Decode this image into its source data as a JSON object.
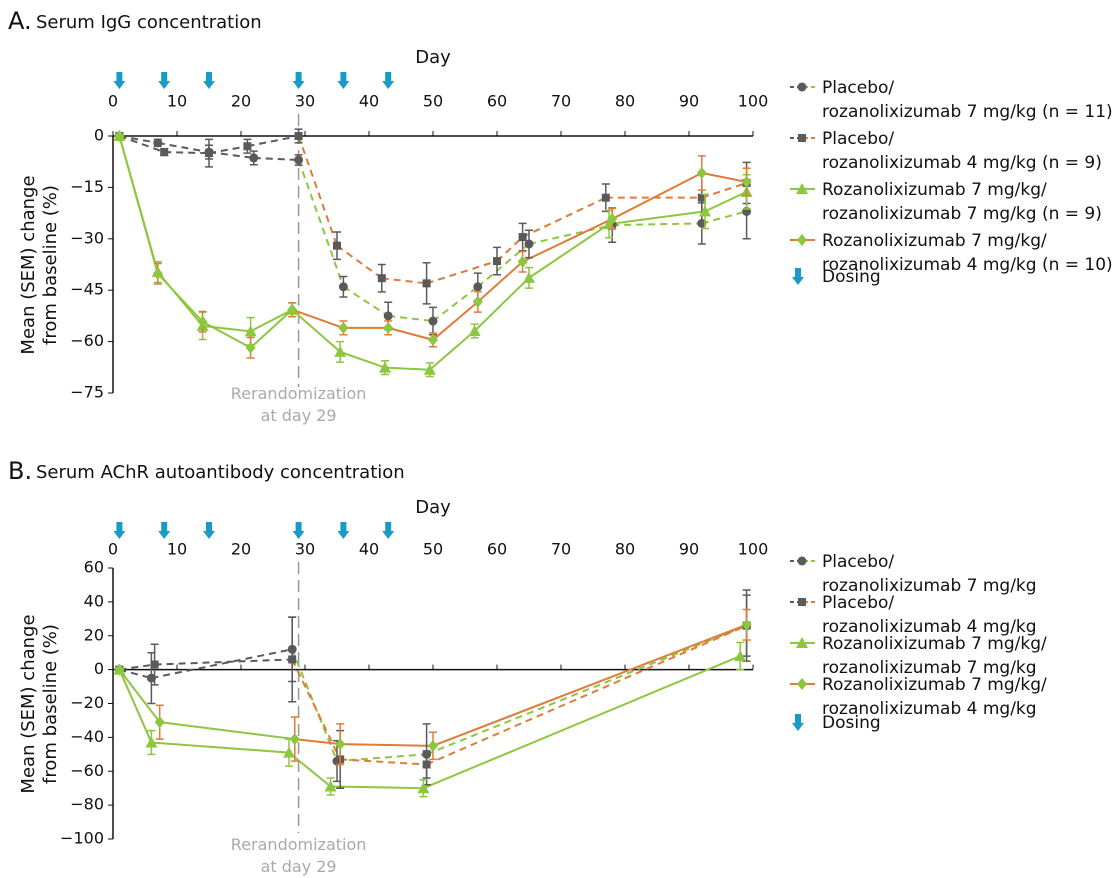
{
  "chart_data": [
    {
      "type": "line",
      "panel_label": "A.",
      "title": "Serum IgG concentration",
      "xlabel": "Day",
      "ylabel": "Mean (SEM) change\nfrom baseline (%)",
      "xlim": [
        0,
        100
      ],
      "xticks": [
        0,
        10,
        20,
        30,
        40,
        50,
        60,
        70,
        80,
        90,
        100
      ],
      "ylim": [
        -75,
        0
      ],
      "yticks": [
        0,
        {
          "value": -15,
          "label": "−15"
        },
        {
          "value": -30,
          "label": "−30"
        },
        {
          "value": -45,
          "label": "−45"
        },
        {
          "value": -60,
          "label": "−60"
        },
        {
          "value": -75,
          "label": "−75"
        }
      ],
      "reference_line_x": 29,
      "annotation": "Rerandomization\nat day 29",
      "dosing_days": [
        1,
        8,
        15,
        29,
        36,
        43
      ],
      "dosing_label": "Dosing",
      "dosing_color": "#1a9bc7",
      "series": [
        {
          "name": "Placebo/\nrozanolixizumab 7 mg/kg (n = 11)",
          "marker": "circle",
          "dash": true,
          "color": "#8dc63f",
          "pre_color": "#5a5a5a",
          "marker_color": "#5a5a5a",
          "error_color": "#5a5a5a",
          "x": [
            1,
            7,
            15,
            22,
            29,
            36,
            43,
            50,
            57,
            65,
            78,
            92,
            99
          ],
          "values": [
            0,
            -2,
            -4.7,
            -6.4,
            -7,
            -44,
            -52.5,
            -54,
            -44,
            -31.5,
            -26,
            -25.5,
            -22
          ],
          "errors": [
            0,
            1,
            2,
            2,
            1.5,
            3,
            4,
            4,
            4,
            4,
            5,
            6,
            8
          ]
        },
        {
          "name": "Placebo/\nrozanolixizumab 4 mg/kg (n = 9)",
          "marker": "square",
          "dash": true,
          "color": "#e07b39",
          "pre_color": "#5a5a5a",
          "marker_color": "#5a5a5a",
          "error_color": "#5a5a5a",
          "x": [
            1,
            8,
            15,
            21,
            29,
            35,
            42,
            49,
            60,
            64,
            77,
            92,
            99
          ],
          "values": [
            0,
            -4.7,
            -5,
            -3,
            0,
            -32,
            -41.5,
            -43,
            -36.5,
            -29.5,
            -18,
            -18,
            -13.7
          ],
          "errors": [
            0,
            1,
            4,
            2,
            2,
            4,
            4,
            6,
            4,
            4,
            4,
            7,
            6
          ]
        },
        {
          "name": "Rozanolixizumab 7 mg/kg/\nrozanolixizumab 7 mg/kg (n = 9)",
          "marker": "triangle",
          "dash": false,
          "color": "#8dc63f",
          "pre_color": "#8dc63f",
          "marker_color": "#8dc63f",
          "error_color": "#8dc63f",
          "x": [
            1,
            7,
            14,
            21.5,
            28,
            35.5,
            42.5,
            49.5,
            56.5,
            65,
            77.5,
            92.5,
            99
          ],
          "values": [
            0,
            -39.7,
            -55.4,
            -57,
            -50.7,
            -63,
            -67.6,
            -68.2,
            -56.9,
            -41.4,
            -25.7,
            -22,
            -16.3
          ],
          "errors": [
            0,
            3,
            4,
            4,
            2,
            3,
            2,
            2,
            2,
            3,
            4,
            5,
            5
          ]
        },
        {
          "name": "Rozanolixizumab 7 mg/kg/\nrozanolixizumab 4 mg/kg (n = 10)",
          "marker": "diamond",
          "dash": false,
          "color": "#e07b39",
          "pre_color": "#8dc63f",
          "marker_color": "#8dc63f",
          "error_color": "#e07b39",
          "x": [
            1,
            7,
            14,
            21.5,
            28,
            36,
            43,
            50,
            57,
            64,
            78,
            92,
            99
          ],
          "values": [
            0,
            -40.2,
            -54.2,
            -61.8,
            -50.7,
            -56,
            -56,
            -59.5,
            -48.4,
            -36.7,
            -24.2,
            -10.8,
            -13.4
          ],
          "errors": [
            0,
            3,
            3,
            3,
            2,
            2,
            2,
            2,
            3,
            3,
            3,
            5,
            4
          ]
        }
      ]
    },
    {
      "type": "line",
      "panel_label": "B.",
      "title": "Serum AChR autoantibody concentration",
      "xlabel": "Day",
      "ylabel": "Mean (SEM) change\nfrom baseline (%)",
      "xlim": [
        0,
        100
      ],
      "xticks": [
        0,
        10,
        20,
        30,
        40,
        50,
        60,
        70,
        80,
        90,
        100
      ],
      "ylim": [
        -100,
        60
      ],
      "yticks": [
        60,
        40,
        20,
        0,
        {
          "value": -20,
          "label": "−20"
        },
        {
          "value": -40,
          "label": "−40"
        },
        {
          "value": -60,
          "label": "−60"
        },
        {
          "value": -80,
          "label": "−80"
        },
        {
          "value": -100,
          "label": "−100"
        }
      ],
      "reference_line_x": 29,
      "annotation": "Rerandomization\nat day 29",
      "dosing_days": [
        1,
        8,
        15,
        29,
        36,
        43
      ],
      "dosing_label": "Dosing",
      "dosing_color": "#1a9bc7",
      "series": [
        {
          "name": "Placebo/\nrozanolixizumab 7 mg/kg",
          "marker": "circle",
          "dash": true,
          "color": "#8dc63f",
          "pre_color": "#5a5a5a",
          "marker_color": "#5a5a5a",
          "error_color": "#5a5a5a",
          "x": [
            1,
            6,
            28,
            35,
            49,
            99
          ],
          "values": [
            0,
            -5,
            12,
            -54,
            -50,
            26
          ],
          "errors": [
            0,
            15,
            19,
            12,
            18,
            21
          ]
        },
        {
          "name": "Placebo/\nrozanolixizumab 4 mg/kg",
          "marker": "square",
          "dash": true,
          "color": "#e07b39",
          "pre_color": "#5a5a5a",
          "marker_color": "#5a5a5a",
          "error_color": "#5a5a5a",
          "x": [
            1,
            6.5,
            28,
            35.5,
            49,
            99
          ],
          "values": [
            0,
            3,
            6,
            -53,
            -56,
            26
          ],
          "errors": [
            0,
            12,
            25,
            17,
            8,
            18
          ]
        },
        {
          "name": "Rozanolixizumab 7 mg/kg/\nrozanolixizumab 7 mg/kg",
          "marker": "triangle",
          "dash": false,
          "color": "#8dc63f",
          "pre_color": "#8dc63f",
          "marker_color": "#8dc63f",
          "error_color": "#8dc63f",
          "x": [
            1,
            6,
            27.5,
            34,
            48.5,
            98
          ],
          "values": [
            0,
            -43,
            -49,
            -69,
            -70,
            8
          ],
          "errors": [
            0,
            7,
            8,
            5,
            5,
            8
          ]
        },
        {
          "name": "Rozanolixizumab 7 mg/kg/\nrozanolixizumab 4 mg/kg",
          "marker": "diamond",
          "dash": false,
          "color": "#e07b39",
          "pre_color": "#8dc63f",
          "marker_color": "#8dc63f",
          "error_color": "#e07b39",
          "x": [
            1,
            7.3,
            28.4,
            35.5,
            50,
            99
          ],
          "values": [
            0,
            -31,
            -41,
            -44,
            -45,
            26.5
          ],
          "errors": [
            0,
            10,
            13,
            12,
            8,
            9
          ]
        }
      ]
    }
  ]
}
